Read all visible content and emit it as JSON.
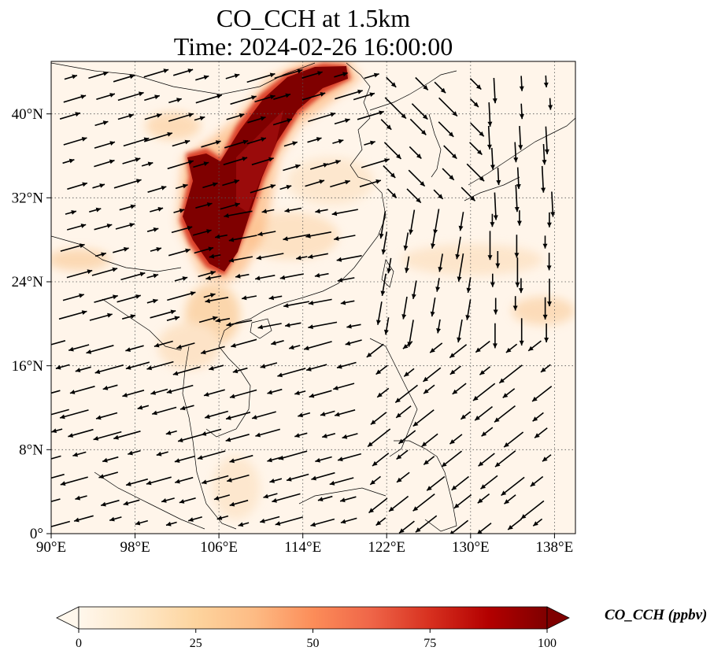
{
  "title": {
    "line1": "CO_CCH at 1.5km",
    "line2": "Time: 2024-02-26 16:00:00"
  },
  "map": {
    "lon_range": [
      90,
      140
    ],
    "lat_range": [
      0,
      45
    ],
    "x_ticks": [
      "90°E",
      "98°E",
      "106°E",
      "114°E",
      "122°E",
      "130°E",
      "138°E"
    ],
    "y_ticks": [
      "0°",
      "8°N",
      "16°N",
      "24°N",
      "32°N",
      "40°N"
    ],
    "gridlines": "dotted",
    "field_colormap": "OrRd",
    "overlay": "wind vectors"
  },
  "colorbar": {
    "label": "CO_CCH (ppbv)",
    "ticks": [
      "0",
      "25",
      "50",
      "75",
      "100"
    ],
    "range": [
      0,
      100
    ],
    "extend": "both",
    "colors": [
      "#fff7ec",
      "#fee8c8",
      "#fdd49e",
      "#fdbb84",
      "#fc8d59",
      "#ef6548",
      "#d7301f",
      "#b30000",
      "#7f0000"
    ]
  }
}
